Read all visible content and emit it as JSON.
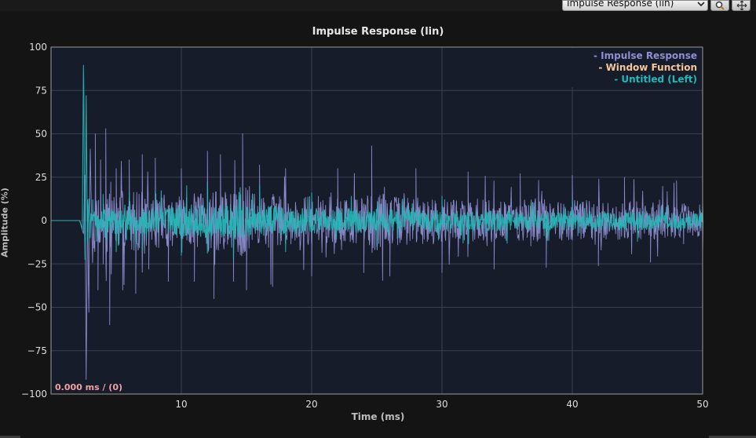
{
  "toolbar": {
    "view_selected": "Impulse Response (lin)",
    "zoom_icon": "magnifier-icon",
    "pan_icon": "move-arrows-icon"
  },
  "readout": "0.000 ms / (0)",
  "colors": {
    "plot_bg": "#171c2b",
    "grid": "#3a3f4e",
    "impulse": "#8e8fd0",
    "window": "#f3c79a",
    "untitled": "#22b8b6"
  },
  "chart_data": {
    "type": "line",
    "title": "Impulse Response (lin)",
    "xlabel": "Time (ms)",
    "ylabel": "Amplitude (%)",
    "xlim": [
      0,
      50
    ],
    "ylim": [
      -100,
      100
    ],
    "x_ticks": [
      "10",
      "20",
      "30",
      "40",
      "50"
    ],
    "y_ticks": [
      "100",
      "75",
      "50",
      "25",
      "0",
      "−25",
      "−50",
      "−75",
      "−100"
    ],
    "grid": true,
    "legend_position": "top-right",
    "series": [
      {
        "name": "Impulse Response",
        "color": "#8e8fd0",
        "x": [
          0,
          2.2,
          2.5,
          2.6,
          2.7,
          2.8,
          2.9,
          3.0,
          3.2,
          3.4,
          3.6,
          3.8,
          4.0,
          4.2,
          4.5,
          5.0,
          5.5,
          6.0,
          6.5,
          7.0,
          7.5,
          8.0,
          9.0,
          10.0,
          11.0,
          12.0,
          12.5,
          13.0,
          14.0,
          14.7,
          15.0,
          16.0,
          17.0,
          18.0,
          20.0,
          22.0,
          24.0,
          24.6,
          26.0,
          28.0,
          30.0,
          32.0,
          34.0,
          36.0,
          38.0,
          40.0,
          42.0,
          44.0,
          46.0,
          48.0,
          50.0
        ],
        "y": [
          0,
          0,
          -8,
          30,
          -98,
          12,
          -58,
          45,
          -30,
          50,
          -40,
          35,
          -25,
          53,
          -60,
          30,
          -40,
          35,
          -42,
          38,
          -28,
          36,
          -35,
          30,
          -35,
          40,
          -45,
          38,
          -35,
          50,
          -40,
          32,
          -38,
          30,
          -32,
          30,
          -30,
          43,
          -32,
          30,
          -30,
          28,
          -28,
          27,
          -27,
          26,
          -26,
          25,
          -24,
          23,
          -20
        ]
      },
      {
        "name": "Window Function",
        "color": "#f3c79a",
        "x": [],
        "y": []
      },
      {
        "name": "Untitled (Left)",
        "color": "#22b8b6",
        "x": [
          0,
          2.2,
          2.4,
          2.5,
          2.6,
          2.7,
          2.8,
          2.9,
          3.0,
          3.2,
          3.5,
          4.0,
          5.0,
          6.0,
          7.0,
          8.0,
          10.0,
          12.0,
          14.0,
          16.0,
          18.0,
          20.0,
          25.0,
          30.0,
          35.0,
          40.0,
          45.0,
          50.0
        ],
        "y": [
          0,
          0,
          -5,
          100,
          -33,
          72,
          -20,
          15,
          -10,
          12,
          -12,
          15,
          -18,
          16,
          -18,
          17,
          -20,
          22,
          -22,
          20,
          -18,
          16,
          -15,
          14,
          -13,
          12,
          -12,
          10
        ]
      }
    ]
  }
}
